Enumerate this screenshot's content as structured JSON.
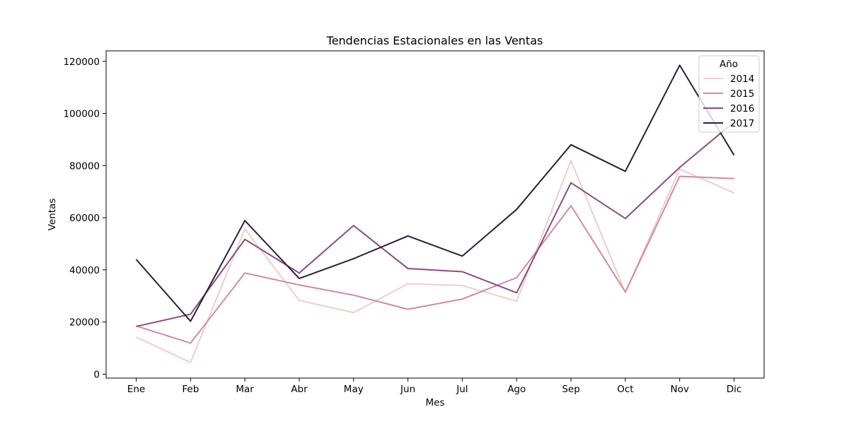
{
  "chart_data": {
    "type": "line",
    "title": "Tendencias Estacionales en las Ventas",
    "xlabel": "Mes",
    "ylabel": "Ventas",
    "categories": [
      "Ene",
      "Feb",
      "Mar",
      "Abr",
      "May",
      "Jun",
      "Jul",
      "Ago",
      "Sep",
      "Oct",
      "Nov",
      "Dic"
    ],
    "ylim": [
      -1500,
      124000
    ],
    "yticks": [
      0,
      20000,
      40000,
      60000,
      80000,
      100000,
      120000
    ],
    "grid": false,
    "legend": {
      "title": "Año",
      "placement": "top-right"
    },
    "series": [
      {
        "name": "2014",
        "color": "#efcdc9",
        "values": [
          14200,
          4500,
          55700,
          28300,
          23600,
          34700,
          34000,
          28000,
          81900,
          31300,
          78700,
          69500
        ]
      },
      {
        "name": "2015",
        "color": "#d08a9f",
        "values": [
          18500,
          11900,
          38800,
          34200,
          30300,
          24900,
          28800,
          37000,
          64600,
          31500,
          75900,
          75000
        ]
      },
      {
        "name": "2016",
        "color": "#8d4c7f",
        "values": [
          18300,
          23000,
          51700,
          38800,
          57000,
          40500,
          39300,
          31200,
          73400,
          59700,
          79300,
          96700
        ]
      },
      {
        "name": "2017",
        "color": "#2d1e3e",
        "values": [
          44000,
          20300,
          58900,
          36700,
          44300,
          53000,
          45300,
          63200,
          88000,
          77800,
          118500,
          84000
        ]
      }
    ]
  }
}
